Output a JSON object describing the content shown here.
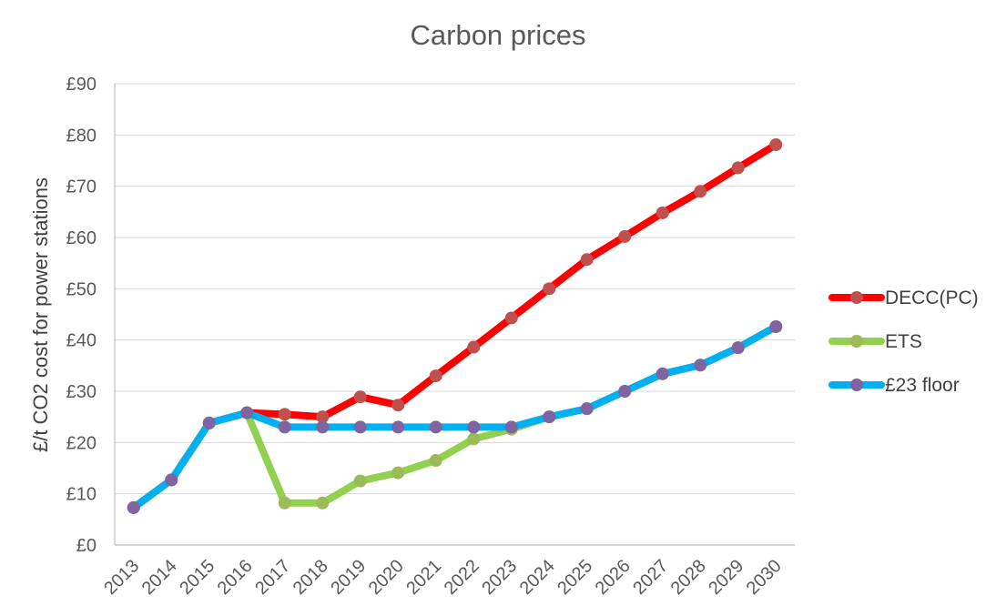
{
  "chart_data": {
    "type": "line",
    "title": "Carbon prices",
    "xlabel": "",
    "ylabel": "£/t CO2 cost for power stations",
    "categories": [
      "2013",
      "2014",
      "2015",
      "2016",
      "2017",
      "2018",
      "2019",
      "2020",
      "2021",
      "2022",
      "2023",
      "2024",
      "2025",
      "2026",
      "2027",
      "2028",
      "2029",
      "2030"
    ],
    "y_ticks": [
      "£0",
      "£10",
      "£20",
      "£30",
      "£40",
      "£50",
      "£60",
      "£70",
      "£80",
      "£90"
    ],
    "ylim": [
      0,
      90
    ],
    "grid": true,
    "legend_position": "right",
    "series": [
      {
        "name": "DECC(PC)",
        "line_color": "#ff0000",
        "marker_color": "#c0504d",
        "values": [
          7.3,
          12.7,
          23.8,
          25.8,
          25.5,
          25.0,
          28.9,
          27.3,
          33.0,
          38.6,
          44.3,
          50.0,
          55.7,
          60.2,
          64.8,
          69.0,
          73.6,
          78.1
        ]
      },
      {
        "name": "ETS",
        "line_color": "#92d050",
        "marker_color": "#9bbb59",
        "values": [
          7.3,
          12.7,
          23.8,
          25.8,
          8.2,
          8.2,
          12.5,
          14.1,
          16.5,
          20.7,
          22.6,
          25.0,
          26.6,
          30.0,
          33.4,
          35.1,
          38.5,
          42.6
        ]
      },
      {
        "name": "£23 floor",
        "line_color": "#00b0f0",
        "marker_color": "#8064a2",
        "values": [
          7.3,
          12.7,
          23.8,
          25.8,
          23.0,
          23.0,
          23.0,
          23.0,
          23.0,
          23.0,
          23.0,
          25.0,
          26.6,
          30.0,
          33.4,
          35.1,
          38.5,
          42.6
        ]
      }
    ]
  }
}
